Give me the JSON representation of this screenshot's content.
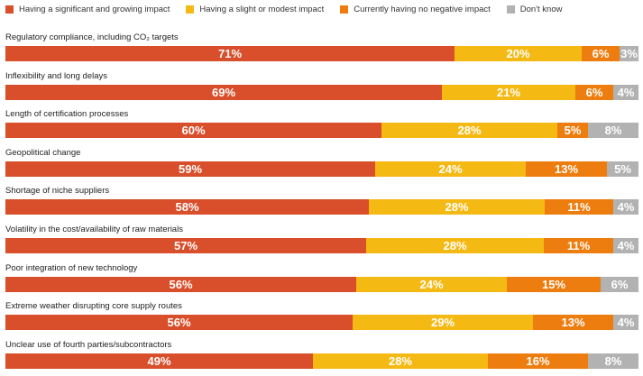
{
  "chart_data": {
    "type": "bar",
    "orientation": "horizontal",
    "stacked": true,
    "legend_position": "top-left",
    "grid": false,
    "xlim": [
      0,
      100
    ],
    "series": [
      {
        "name": "Having a significant and growing impact",
        "color": "#d94f2b"
      },
      {
        "name": "Having a slight or modest impact",
        "color": "#f5b914"
      },
      {
        "name": "Currently having no negative impact",
        "color": "#ee7d0f"
      },
      {
        "name": "Don't know",
        "color": "#b2b2b2"
      }
    ],
    "categories": [
      {
        "label": "Regulatory compliance, including CO₂ targets",
        "values": [
          71,
          20,
          6,
          3
        ]
      },
      {
        "label": "Inflexibility and long delays",
        "values": [
          69,
          21,
          6,
          4
        ]
      },
      {
        "label": "Length of certification processes",
        "values": [
          60,
          28,
          5,
          8
        ]
      },
      {
        "label": "Geopolitical change",
        "values": [
          59,
          24,
          13,
          5
        ]
      },
      {
        "label": "Shortage of niche suppliers",
        "values": [
          58,
          28,
          11,
          4
        ]
      },
      {
        "label": "Volatility in the cost/availability of raw materials",
        "values": [
          57,
          28,
          11,
          4
        ]
      },
      {
        "label": "Poor integration of new technology",
        "values": [
          56,
          24,
          15,
          6
        ]
      },
      {
        "label": "Extreme weather disrupting core supply routes",
        "values": [
          56,
          29,
          13,
          4
        ]
      },
      {
        "label": "Unclear use of fourth parties/subcontractors",
        "values": [
          49,
          28,
          16,
          8
        ]
      }
    ]
  }
}
